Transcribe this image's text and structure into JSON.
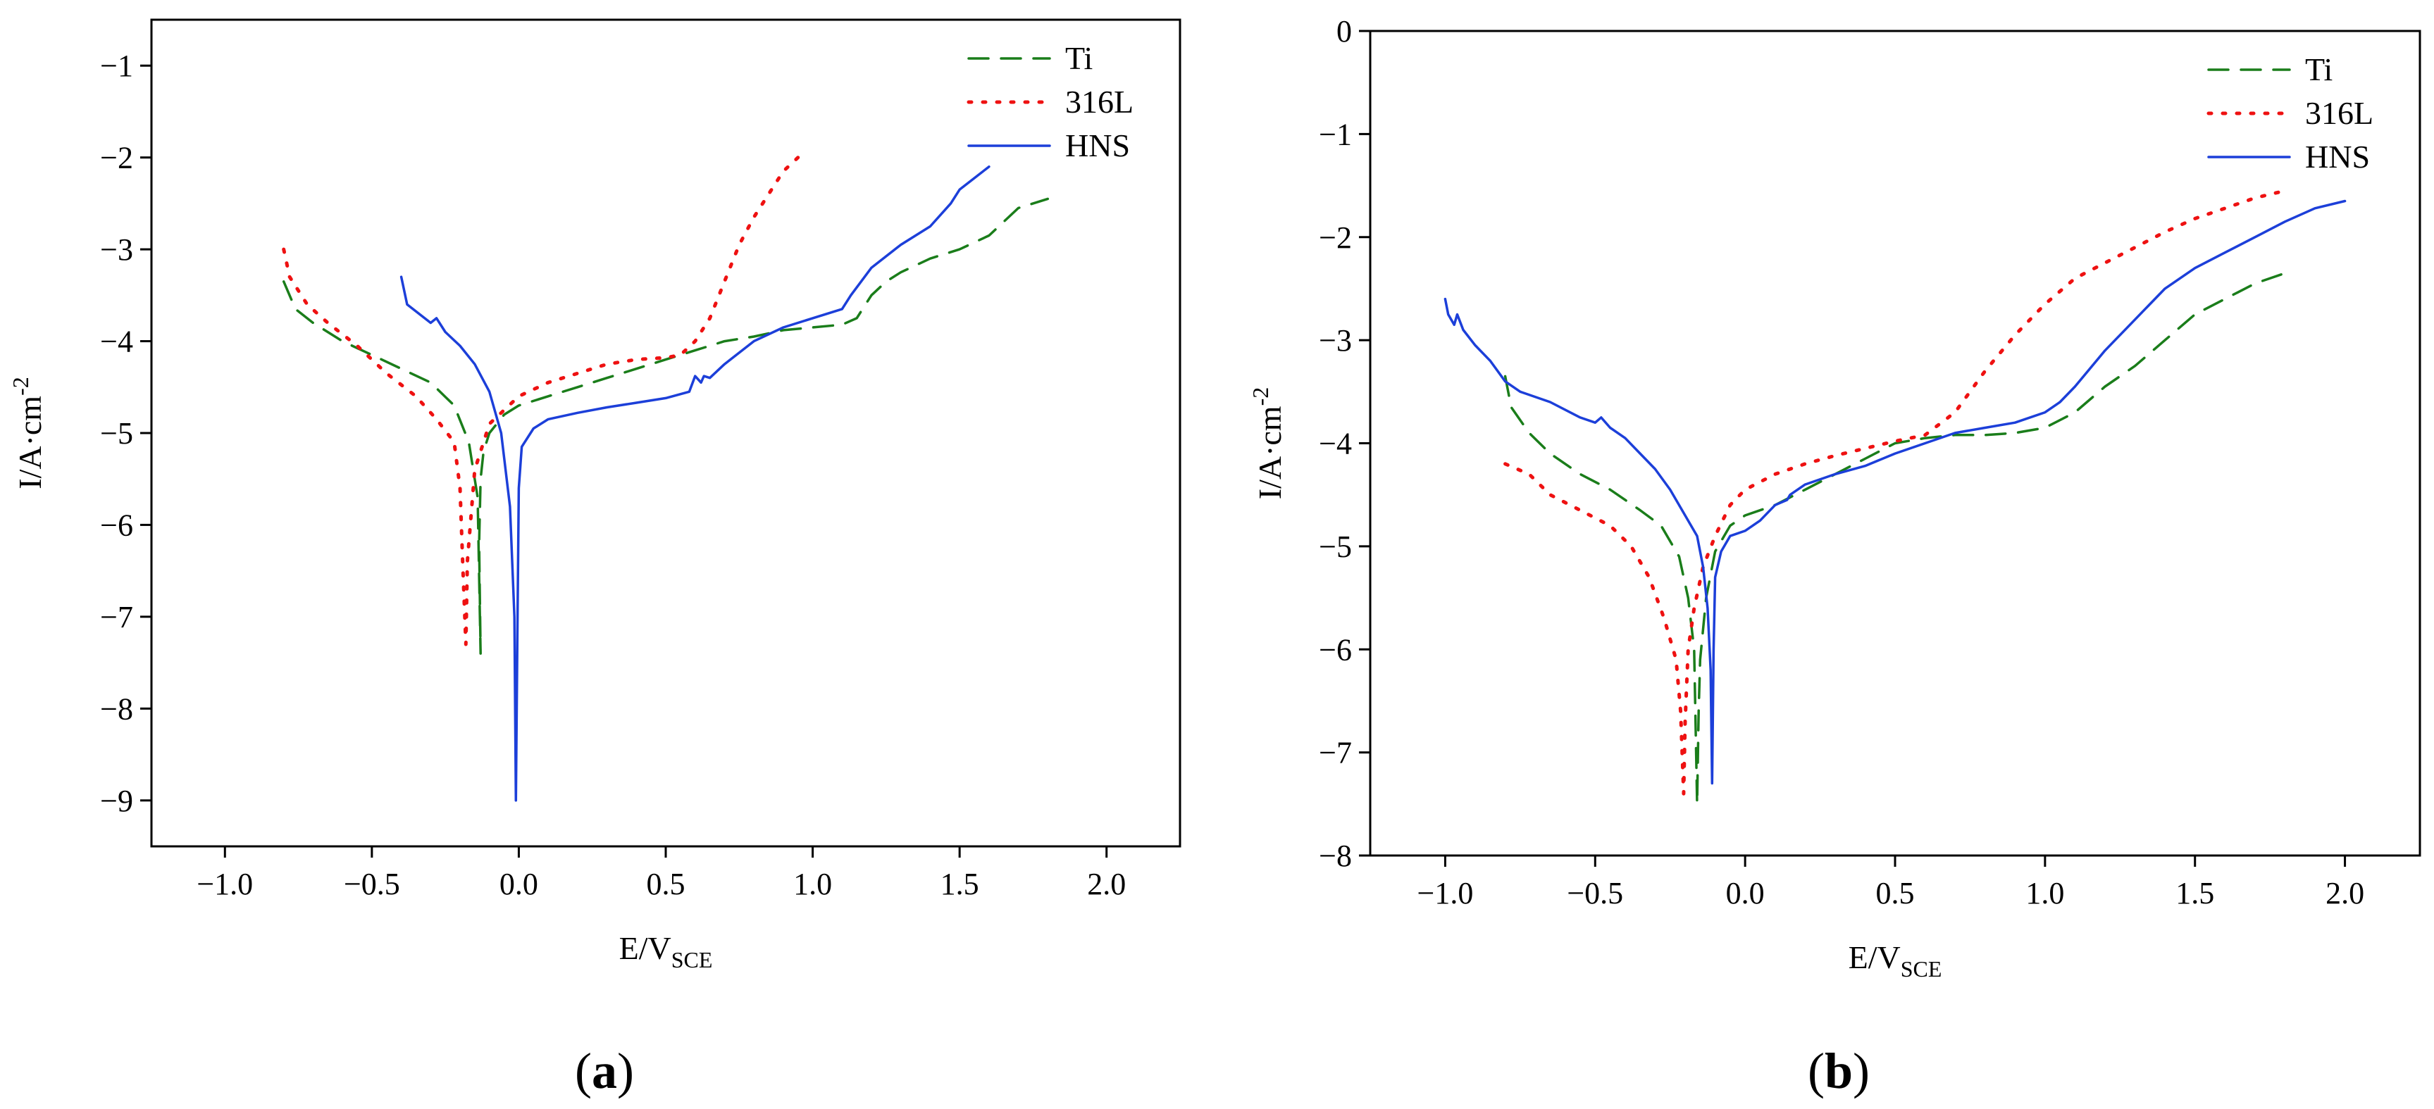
{
  "panels": [
    {
      "label_open": "(",
      "label_letter": "a",
      "label_close": ")"
    },
    {
      "label_open": "(",
      "label_letter": "b",
      "label_close": ")"
    }
  ],
  "chart_data": [
    {
      "type": "line",
      "panel": "a",
      "title": "",
      "xlabel": "E/V",
      "xlabel_sub": "SCE",
      "ylabel": "I/A·cm",
      "ylabel_sup": "-2",
      "xlim": [
        -1.25,
        2.25
      ],
      "ylim": [
        -9.5,
        -0.5
      ],
      "xticks": [
        -1.0,
        -0.5,
        0.0,
        0.5,
        1.0,
        1.5,
        2.0
      ],
      "xtick_labels": [
        "−1.0",
        "−0.5",
        "0.0",
        "0.5",
        "1.0",
        "1.5",
        "2.0"
      ],
      "yticks": [
        -1,
        -2,
        -3,
        -4,
        -5,
        -6,
        -7,
        -8,
        -9
      ],
      "ytick_labels": [
        "−1",
        "−2",
        "−3",
        "−4",
        "−5",
        "−6",
        "−7",
        "−8",
        "−9"
      ],
      "legend_position": "top-right",
      "series": [
        {
          "name": "Ti",
          "color": "#1a7d1a",
          "style": "dashed",
          "x": [
            -0.8,
            -0.76,
            -0.7,
            -0.6,
            -0.5,
            -0.4,
            -0.3,
            -0.22,
            -0.17,
            -0.14,
            -0.13,
            -0.135,
            -0.13,
            -0.12,
            -0.1,
            -0.05,
            0.0,
            0.1,
            0.2,
            0.3,
            0.4,
            0.5,
            0.6,
            0.7,
            0.8,
            0.9,
            1.0,
            1.1,
            1.15,
            1.2,
            1.25,
            1.3,
            1.4,
            1.5,
            1.6,
            1.7,
            1.8
          ],
          "y": [
            -3.35,
            -3.65,
            -3.8,
            -4.0,
            -4.15,
            -4.3,
            -4.45,
            -4.7,
            -5.1,
            -5.7,
            -7.4,
            -6.2,
            -5.5,
            -5.2,
            -5.0,
            -4.8,
            -4.7,
            -4.6,
            -4.5,
            -4.4,
            -4.3,
            -4.2,
            -4.1,
            -4.0,
            -3.95,
            -3.88,
            -3.85,
            -3.82,
            -3.75,
            -3.5,
            -3.35,
            -3.25,
            -3.1,
            -3.0,
            -2.85,
            -2.55,
            -2.45
          ]
        },
        {
          "name": "316L",
          "color": "#ee1111",
          "style": "dotted",
          "x": [
            -0.8,
            -0.78,
            -0.72,
            -0.65,
            -0.55,
            -0.45,
            -0.35,
            -0.28,
            -0.22,
            -0.2,
            -0.19,
            -0.18,
            -0.175,
            -0.15,
            -0.1,
            0.0,
            0.1,
            0.2,
            0.3,
            0.4,
            0.5,
            0.55,
            0.6,
            0.65,
            0.7,
            0.75,
            0.8,
            0.85,
            0.9,
            0.95
          ],
          "y": [
            -3.0,
            -3.3,
            -3.6,
            -3.8,
            -4.05,
            -4.35,
            -4.6,
            -4.85,
            -5.1,
            -5.6,
            -6.5,
            -7.3,
            -6.4,
            -5.4,
            -4.9,
            -4.6,
            -4.45,
            -4.35,
            -4.25,
            -4.2,
            -4.18,
            -4.15,
            -4.0,
            -3.75,
            -3.35,
            -2.95,
            -2.65,
            -2.4,
            -2.15,
            -2.0
          ]
        },
        {
          "name": "HNS",
          "color": "#1c3fd9",
          "style": "solid",
          "x": [
            -0.4,
            -0.38,
            -0.3,
            -0.28,
            -0.25,
            -0.2,
            -0.15,
            -0.1,
            -0.06,
            -0.03,
            -0.015,
            -0.01,
            -0.005,
            0.0,
            0.01,
            0.05,
            0.1,
            0.2,
            0.3,
            0.4,
            0.5,
            0.58,
            0.6,
            0.62,
            0.63,
            0.65,
            0.7,
            0.8,
            0.9,
            1.0,
            1.1,
            1.13,
            1.2,
            1.3,
            1.4,
            1.47,
            1.5,
            1.6
          ],
          "y": [
            -3.3,
            -3.6,
            -3.8,
            -3.75,
            -3.9,
            -4.05,
            -4.25,
            -4.55,
            -5.0,
            -5.8,
            -7.0,
            -9.0,
            -7.3,
            -5.6,
            -5.15,
            -4.95,
            -4.85,
            -4.78,
            -4.72,
            -4.67,
            -4.62,
            -4.55,
            -4.38,
            -4.45,
            -4.38,
            -4.4,
            -4.25,
            -4.0,
            -3.85,
            -3.75,
            -3.65,
            -3.5,
            -3.2,
            -2.95,
            -2.75,
            -2.5,
            -2.35,
            -2.1
          ]
        }
      ]
    },
    {
      "type": "line",
      "panel": "b",
      "title": "",
      "xlabel": "E/V",
      "xlabel_sub": "SCE",
      "ylabel": "I/A·cm",
      "ylabel_sup": "-2",
      "xlim": [
        -1.25,
        2.25
      ],
      "ylim": [
        -8,
        0
      ],
      "xticks": [
        -1.0,
        -0.5,
        0.0,
        0.5,
        1.0,
        1.5,
        2.0
      ],
      "xtick_labels": [
        "−1.0",
        "−0.5",
        "0.0",
        "0.5",
        "1.0",
        "1.5",
        "2.0"
      ],
      "yticks": [
        0,
        -1,
        -2,
        -3,
        -4,
        -5,
        -6,
        -7,
        -8
      ],
      "ytick_labels": [
        "0",
        "−1",
        "−2",
        "−3",
        "−4",
        "−5",
        "−6",
        "−7",
        "−8"
      ],
      "legend_position": "top-right",
      "series": [
        {
          "name": "Ti",
          "color": "#1a7d1a",
          "style": "dashed",
          "x": [
            -0.8,
            -0.78,
            -0.72,
            -0.65,
            -0.55,
            -0.45,
            -0.35,
            -0.28,
            -0.22,
            -0.19,
            -0.17,
            -0.16,
            -0.155,
            -0.15,
            -0.13,
            -0.1,
            -0.05,
            0.0,
            0.1,
            0.2,
            0.3,
            0.4,
            0.5,
            0.6,
            0.7,
            0.8,
            0.9,
            1.0,
            1.1,
            1.2,
            1.3,
            1.4,
            1.5,
            1.6,
            1.7,
            1.8
          ],
          "y": [
            -3.35,
            -3.65,
            -3.9,
            -4.1,
            -4.3,
            -4.45,
            -4.65,
            -4.8,
            -5.1,
            -5.5,
            -6.0,
            -7.5,
            -6.6,
            -6.1,
            -5.5,
            -5.05,
            -4.8,
            -4.7,
            -4.6,
            -4.45,
            -4.3,
            -4.15,
            -4.0,
            -3.95,
            -3.92,
            -3.92,
            -3.9,
            -3.85,
            -3.7,
            -3.45,
            -3.25,
            -3.0,
            -2.75,
            -2.6,
            -2.45,
            -2.35
          ]
        },
        {
          "name": "316L",
          "color": "#ee1111",
          "style": "dotted",
          "x": [
            -0.8,
            -0.72,
            -0.65,
            -0.55,
            -0.45,
            -0.38,
            -0.32,
            -0.27,
            -0.23,
            -0.215,
            -0.205,
            -0.2,
            -0.19,
            -0.17,
            -0.14,
            -0.1,
            -0.05,
            0.0,
            0.1,
            0.2,
            0.3,
            0.4,
            0.5,
            0.6,
            0.7,
            0.8,
            0.9,
            1.0,
            1.1,
            1.2,
            1.3,
            1.4,
            1.5,
            1.6,
            1.7,
            1.8
          ],
          "y": [
            -4.2,
            -4.3,
            -4.5,
            -4.65,
            -4.8,
            -5.0,
            -5.3,
            -5.7,
            -6.1,
            -6.6,
            -7.4,
            -6.7,
            -6.0,
            -5.6,
            -5.2,
            -4.9,
            -4.6,
            -4.45,
            -4.3,
            -4.2,
            -4.12,
            -4.05,
            -3.98,
            -3.92,
            -3.7,
            -3.3,
            -2.95,
            -2.65,
            -2.4,
            -2.25,
            -2.1,
            -1.95,
            -1.82,
            -1.72,
            -1.62,
            -1.55
          ]
        },
        {
          "name": "HNS",
          "color": "#1c3fd9",
          "style": "solid",
          "x": [
            -1.0,
            -0.99,
            -0.97,
            -0.96,
            -0.94,
            -0.9,
            -0.85,
            -0.8,
            -0.75,
            -0.65,
            -0.55,
            -0.5,
            -0.48,
            -0.45,
            -0.4,
            -0.35,
            -0.3,
            -0.25,
            -0.2,
            -0.16,
            -0.14,
            -0.125,
            -0.115,
            -0.11,
            -0.105,
            -0.1,
            -0.08,
            -0.05,
            0.0,
            0.05,
            0.1,
            0.14,
            0.15,
            0.2,
            0.3,
            0.4,
            0.5,
            0.6,
            0.7,
            0.8,
            0.9,
            1.0,
            1.05,
            1.1,
            1.2,
            1.3,
            1.4,
            1.5,
            1.6,
            1.7,
            1.8,
            1.9,
            2.0
          ],
          "y": [
            -2.6,
            -2.75,
            -2.85,
            -2.75,
            -2.9,
            -3.05,
            -3.2,
            -3.4,
            -3.5,
            -3.6,
            -3.75,
            -3.8,
            -3.75,
            -3.85,
            -3.95,
            -4.1,
            -4.25,
            -4.45,
            -4.7,
            -4.9,
            -5.2,
            -5.6,
            -6.2,
            -7.3,
            -6.0,
            -5.3,
            -5.05,
            -4.9,
            -4.85,
            -4.75,
            -4.6,
            -4.55,
            -4.5,
            -4.4,
            -4.3,
            -4.22,
            -4.1,
            -4.0,
            -3.9,
            -3.85,
            -3.8,
            -3.7,
            -3.6,
            -3.45,
            -3.1,
            -2.8,
            -2.5,
            -2.3,
            -2.15,
            -2.0,
            -1.85,
            -1.72,
            -1.65
          ]
        }
      ]
    }
  ]
}
